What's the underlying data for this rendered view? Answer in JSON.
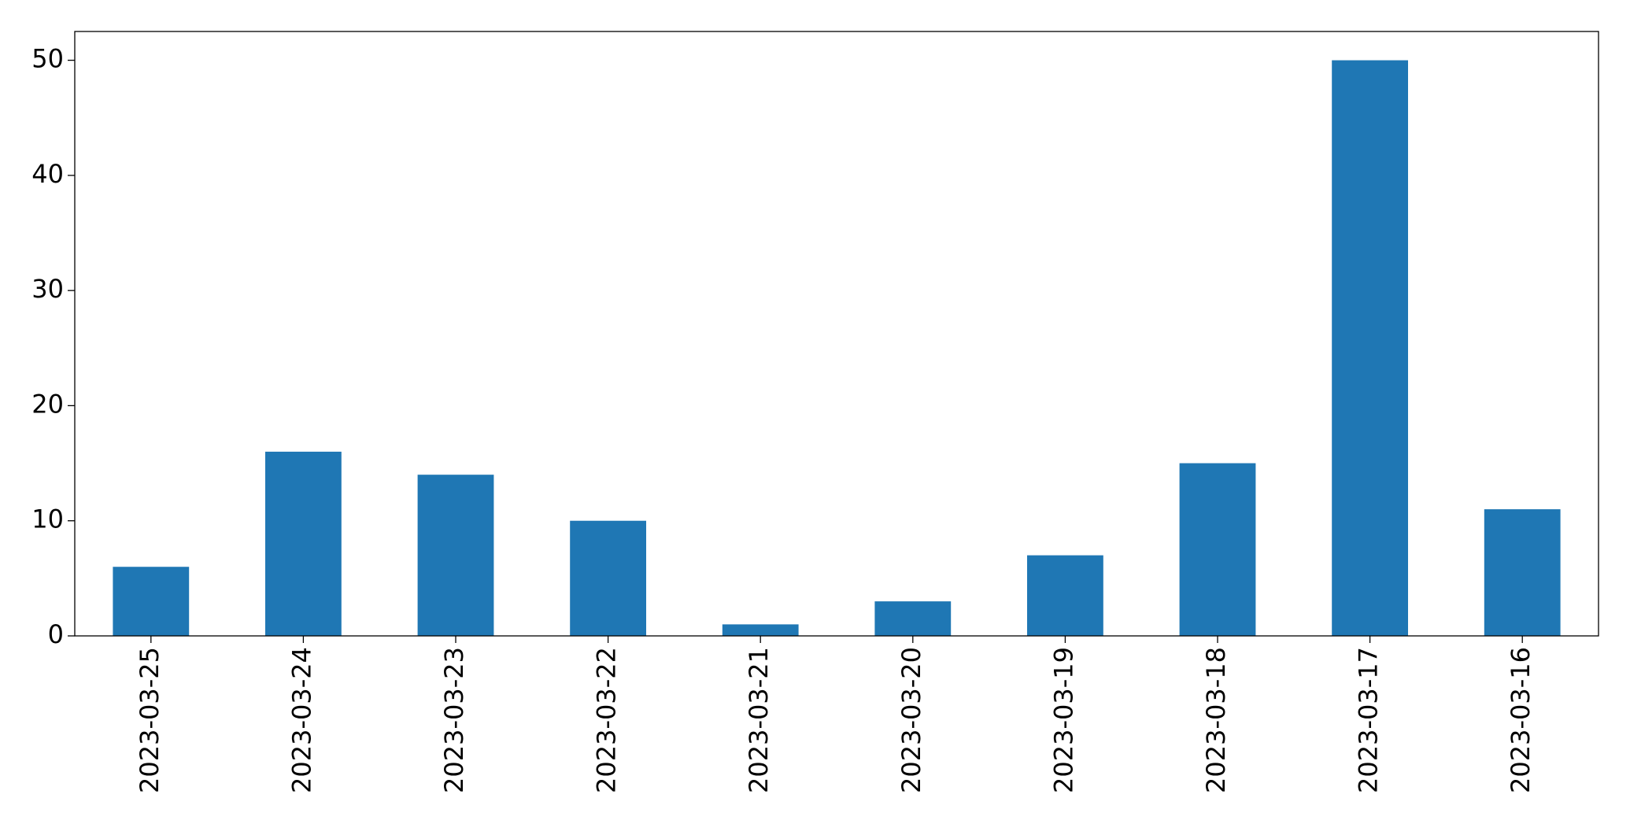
{
  "chart_data": {
    "type": "bar",
    "categories": [
      "2023-03-25",
      "2023-03-24",
      "2023-03-23",
      "2023-03-22",
      "2023-03-21",
      "2023-03-20",
      "2023-03-19",
      "2023-03-18",
      "2023-03-17",
      "2023-03-16"
    ],
    "values": [
      6,
      16,
      14,
      10,
      1,
      3,
      7,
      15,
      50,
      11
    ],
    "color": "#1f77b4",
    "ylim": [
      0,
      52.5
    ],
    "yticks": [
      0,
      10,
      20,
      30,
      40,
      50
    ],
    "grid": false
  }
}
